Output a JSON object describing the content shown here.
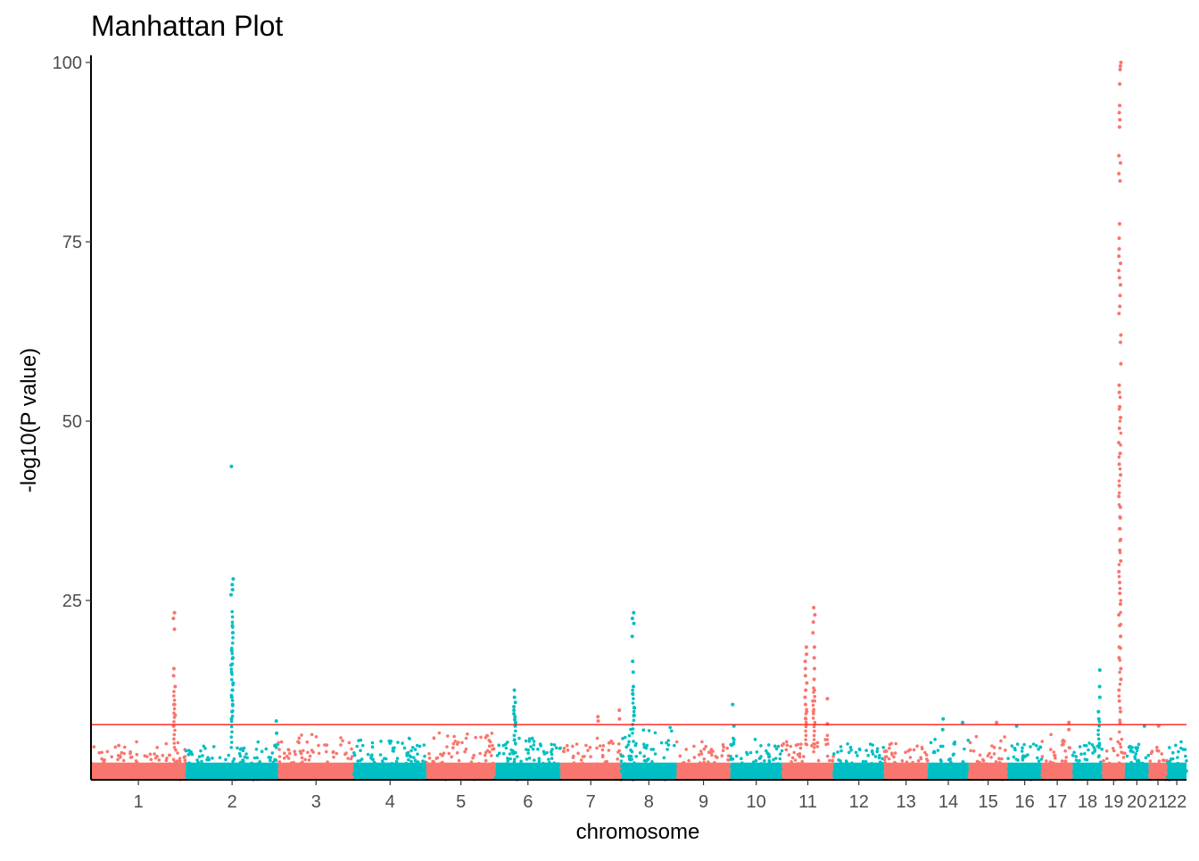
{
  "chart_data": {
    "type": "scatter",
    "subtype": "manhattan",
    "title": "Manhattan Plot",
    "xlabel": "chromosome",
    "ylabel": "-log10(P value)",
    "ylim": [
      0,
      100
    ],
    "yticks": [
      25,
      50,
      75,
      100
    ],
    "grid": false,
    "legend": "none",
    "significance_threshold": 7.7,
    "colors": {
      "odd": "#F8766D",
      "even": "#00BFC4",
      "threshold": "#FF0000",
      "axis": "#000000"
    },
    "chromosomes": [
      {
        "label": "1",
        "length": 249,
        "max_height": 4.5,
        "peaks": [
          {
            "pos": 0.88,
            "max": 23.3,
            "points": [
              21.0,
              22.5,
              23.3,
              15.5,
              14.5,
              13.0,
              10.5,
              9.0,
              7.5
            ]
          }
        ]
      },
      {
        "label": "2",
        "length": 243,
        "max_height": 4.5,
        "peaks": [
          {
            "pos": 0.5,
            "max": 43.7,
            "points": [
              43.7,
              28.0,
              27.2,
              26.5,
              25.8,
              21.5,
              20.5,
              18.0,
              17.0,
              16.0,
              15.0,
              13.5,
              12.5,
              11.5,
              10.5,
              9.5,
              8.5
            ]
          },
          {
            "pos": 0.98,
            "max": 8.2,
            "points": [
              8.2,
              6.5
            ]
          }
        ]
      },
      {
        "label": "3",
        "length": 198,
        "max_height": 5.5,
        "peaks": []
      },
      {
        "label": "4",
        "length": 191,
        "max_height": 5.0,
        "peaks": []
      },
      {
        "label": "5",
        "length": 181,
        "max_height": 6.0,
        "peaks": []
      },
      {
        "label": "6",
        "length": 171,
        "max_height": 5.0,
        "peaks": [
          {
            "pos": 0.3,
            "max": 12.5,
            "points": [
              12.5,
              11.5,
              10.8,
              10.2,
              9.7,
              9.2,
              8.8,
              8.4,
              8.0,
              7.5
            ]
          }
        ]
      },
      {
        "label": "7",
        "length": 159,
        "max_height": 5.0,
        "peaks": [
          {
            "pos": 0.62,
            "max": 8.8,
            "points": [
              8.8,
              8.2
            ]
          },
          {
            "pos": 0.97,
            "max": 9.7,
            "points": [
              9.7,
              8.5
            ]
          }
        ]
      },
      {
        "label": "8",
        "length": 146,
        "max_height": 6.5,
        "peaks": [
          {
            "pos": 0.22,
            "max": 23.3,
            "points": [
              23.3,
              22.5,
              21.8,
              20.0,
              16.5,
              15.0,
              13.0,
              12.0,
              10.0,
              9.0
            ]
          }
        ]
      },
      {
        "label": "9",
        "length": 141,
        "max_height": 4.5,
        "peaks": []
      },
      {
        "label": "10",
        "length": 136,
        "max_height": 5.0,
        "peaks": [
          {
            "pos": 0.06,
            "max": 10.5,
            "points": [
              10.5,
              7.5
            ]
          }
        ]
      },
      {
        "label": "11",
        "length": 135,
        "max_height": 5.0,
        "peaks": [
          {
            "pos": 0.46,
            "max": 18.5,
            "points": [
              18.5,
              17.5,
              16.5,
              15.5,
              14.5,
              13.5,
              12.5,
              11.5,
              10.5,
              9.5,
              8.5
            ]
          },
          {
            "pos": 0.62,
            "max": 24.0,
            "points": [
              24.0,
              23.0,
              22.0,
              20.5,
              18.5,
              17.0,
              15.5,
              14.0,
              12.5,
              11.0,
              9.5
            ]
          },
          {
            "pos": 0.88,
            "max": 11.3,
            "points": [
              11.3,
              7.8
            ]
          }
        ]
      },
      {
        "label": "12",
        "length": 133,
        "max_height": 4.5,
        "peaks": []
      },
      {
        "label": "13",
        "length": 115,
        "max_height": 4.5,
        "peaks": []
      },
      {
        "label": "14",
        "length": 107,
        "max_height": 5.0,
        "peaks": [
          {
            "pos": 0.38,
            "max": 8.5,
            "points": [
              8.5,
              7.0
            ]
          },
          {
            "pos": 0.85,
            "max": 8.0,
            "points": [
              8.0
            ]
          }
        ]
      },
      {
        "label": "15",
        "length": 102,
        "max_height": 5.5,
        "peaks": [
          {
            "pos": 0.7,
            "max": 8.0,
            "points": [
              8.0
            ]
          }
        ]
      },
      {
        "label": "16",
        "length": 90,
        "max_height": 5.0,
        "peaks": [
          {
            "pos": 0.28,
            "max": 7.5,
            "points": [
              7.5
            ]
          }
        ]
      },
      {
        "label": "17",
        "length": 81,
        "max_height": 5.5,
        "peaks": [
          {
            "pos": 0.88,
            "max": 8.0,
            "points": [
              8.0,
              7.0
            ]
          }
        ]
      },
      {
        "label": "18",
        "length": 78,
        "max_height": 4.5,
        "peaks": [
          {
            "pos": 0.88,
            "max": 15.3,
            "points": [
              15.3,
              13.0,
              11.5,
              9.5,
              8.5
            ]
          }
        ]
      },
      {
        "label": "19",
        "length": 59,
        "max_height": 5.0,
        "peaks": [
          {
            "pos": 0.78,
            "max": 100,
            "points": [
              100,
              99.5,
              99.0,
              97.0,
              94.0,
              93.0,
              92.0,
              91.0,
              87.0,
              86.0,
              84.5,
              83.5,
              77.5,
              75.5,
              74.0,
              73.0,
              72.0,
              71.0,
              70.0,
              69.0,
              67.5,
              66.0,
              65.0,
              62.0,
              61.0,
              58.0,
              55.0,
              54.0,
              52.0,
              50.5,
              49.0,
              47.0,
              45.5,
              44.0,
              42.5,
              41.0,
              39.5,
              38.0,
              36.5,
              35.0,
              33.5,
              32.0,
              30.5,
              29.0,
              27.5,
              26.0,
              24.5,
              23.0,
              21.5,
              20.0,
              18.5,
              17.0,
              15.5,
              14.0,
              12.5,
              11.0,
              9.5,
              8.0
            ]
          }
        ]
      },
      {
        "label": "20",
        "length": 63,
        "max_height": 4.5,
        "peaks": [
          {
            "pos": 0.85,
            "max": 7.5,
            "points": [
              7.5
            ]
          }
        ]
      },
      {
        "label": "21",
        "length": 48,
        "max_height": 4.0,
        "peaks": [
          {
            "pos": 0.55,
            "max": 7.5,
            "points": [
              7.5
            ]
          }
        ]
      },
      {
        "label": "22",
        "length": 51,
        "max_height": 4.5,
        "peaks": []
      }
    ]
  }
}
